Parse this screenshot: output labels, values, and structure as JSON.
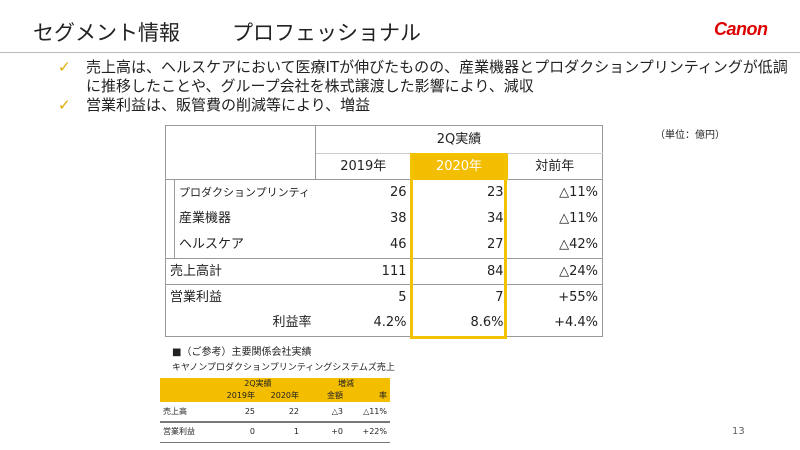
{
  "header": {
    "title": "セグメント情報",
    "subtitle": "プロフェッショナル",
    "logo": "Canon"
  },
  "bullets": [
    "売上高は、ヘルスケアにおいて医療ITが伸びたものの、産業機器とプロダクションプリンティングが低調",
    "に推移したことや、グループ会社を株式譲渡した影響により、減収",
    "営業利益は、販管費の削減等により、増益"
  ],
  "bullet_icon": "checkmark-icon",
  "unit": "（単位：億円）",
  "main_table": {
    "group_header": "2Q実績",
    "columns": [
      "2019年",
      "2020年",
      "対前年"
    ],
    "highlight_color": "#f3bd00",
    "rows": [
      {
        "label": "プロダクションプリンティング",
        "v2019": "26",
        "v2020": "23",
        "yoy": "△11%"
      },
      {
        "label": "産業機器",
        "v2019": "38",
        "v2020": "34",
        "yoy": "△11%"
      },
      {
        "label": "ヘルスケア",
        "v2019": "46",
        "v2020": "27",
        "yoy": "△42%"
      },
      {
        "label": "売上高計",
        "v2019": "111",
        "v2020": "84",
        "yoy": "△24%"
      },
      {
        "label": "営業利益",
        "v2019": "5",
        "v2020": "7",
        "yoy": "+55%"
      },
      {
        "label": "利益率",
        "v2019": "4.2%",
        "v2020": "8.6%",
        "yoy": "+4.4%"
      }
    ]
  },
  "reference": {
    "title": "■（ご参考）主要関係会社実績",
    "subtitle": "キヤノンプロダクションプリンティングシステムズ売上",
    "h1": "2Q実績",
    "h2": "増減",
    "cols": [
      "2019年",
      "2020年",
      "金額",
      "率"
    ],
    "rows": [
      {
        "label": "売上高",
        "c": [
          "25",
          "22",
          "△3",
          "△11%"
        ]
      },
      {
        "label": "営業利益",
        "c": [
          "0",
          "1",
          "+0",
          "+22%"
        ]
      }
    ]
  },
  "page_number": "13"
}
